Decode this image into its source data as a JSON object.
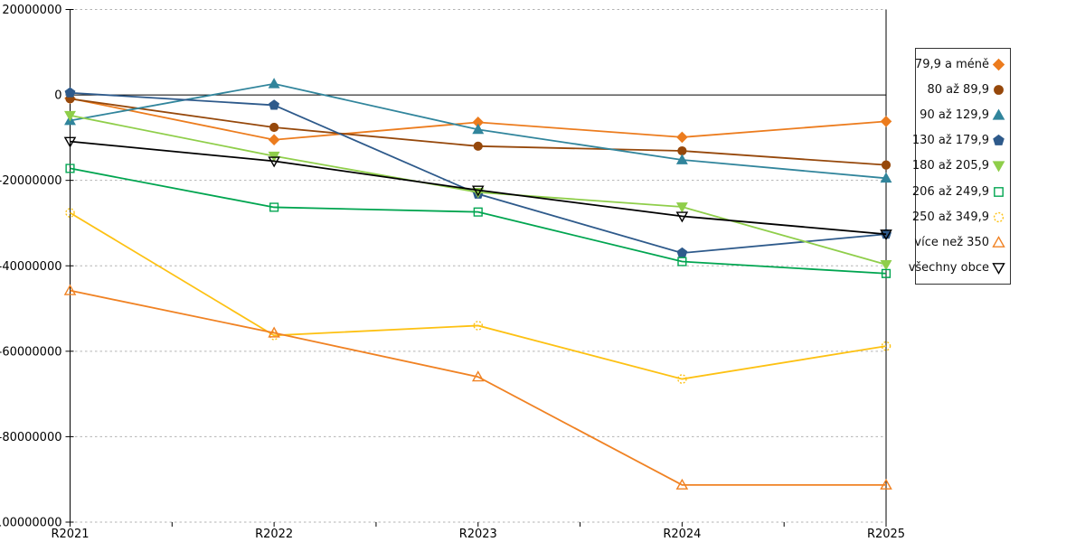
{
  "chart_data": {
    "type": "line",
    "title": "",
    "xlabel": "",
    "ylabel": "",
    "categories": [
      "R2021",
      "R2022",
      "R2023",
      "R2024",
      "R2025"
    ],
    "ylim": [
      -100000000,
      20000000
    ],
    "ytick_interval": 20000000,
    "ytick_labels": [
      "20000000",
      "0",
      "-20000000",
      "-40000000",
      "-60000000",
      "-80000000",
      "-100000000"
    ],
    "grid": "horizontal-dashed",
    "legend_position": "right",
    "axis_color": "#000000",
    "grid_color": "#b3b3b3",
    "series": [
      {
        "name": "79,9 a méně",
        "color": "#EC7C1E",
        "marker": "diamond",
        "filled": true,
        "values": [
          -800000,
          -10500000,
          -6400000,
          -9900000,
          -6200000
        ]
      },
      {
        "name": "80 až 89,9",
        "color": "#96480B",
        "marker": "circle",
        "filled": true,
        "values": [
          -900000,
          -7600000,
          -12000000,
          -13100000,
          -16400000
        ]
      },
      {
        "name": "90 až 129,9",
        "color": "#31859C",
        "marker": "triangle-up",
        "filled": true,
        "values": [
          -6000000,
          2600000,
          -8100000,
          -15200000,
          -19500000
        ]
      },
      {
        "name": "130 až 179,9",
        "color": "#2E5A8B",
        "marker": "pentagon",
        "filled": true,
        "values": [
          500000,
          -2400000,
          -23200000,
          -37000000,
          -32600000
        ]
      },
      {
        "name": "180 až 205,9",
        "color": "#8FCE4A",
        "marker": "triangle-down",
        "filled": true,
        "values": [
          -4800000,
          -14300000,
          -22800000,
          -26200000,
          -39700000
        ]
      },
      {
        "name": "206 až 249,9",
        "color": "#00A550",
        "marker": "square",
        "filled": false,
        "values": [
          -17200000,
          -26300000,
          -27400000,
          -39000000,
          -41800000
        ]
      },
      {
        "name": "250 až 349,9",
        "color": "#FDC113",
        "marker": "circle",
        "filled": false,
        "dashed_marker": true,
        "values": [
          -27600000,
          -56300000,
          -54000000,
          -66500000,
          -58800000
        ]
      },
      {
        "name": "více než 350",
        "color": "#F08223",
        "marker": "triangle-up",
        "filled": false,
        "values": [
          -45800000,
          -55700000,
          -66000000,
          -91300000,
          -91300000
        ]
      },
      {
        "name": "všechny obce",
        "color": "#000000",
        "marker": "triangle-down",
        "filled": false,
        "values": [
          -10900000,
          -15500000,
          -22300000,
          -28400000,
          -32600000
        ]
      }
    ]
  }
}
